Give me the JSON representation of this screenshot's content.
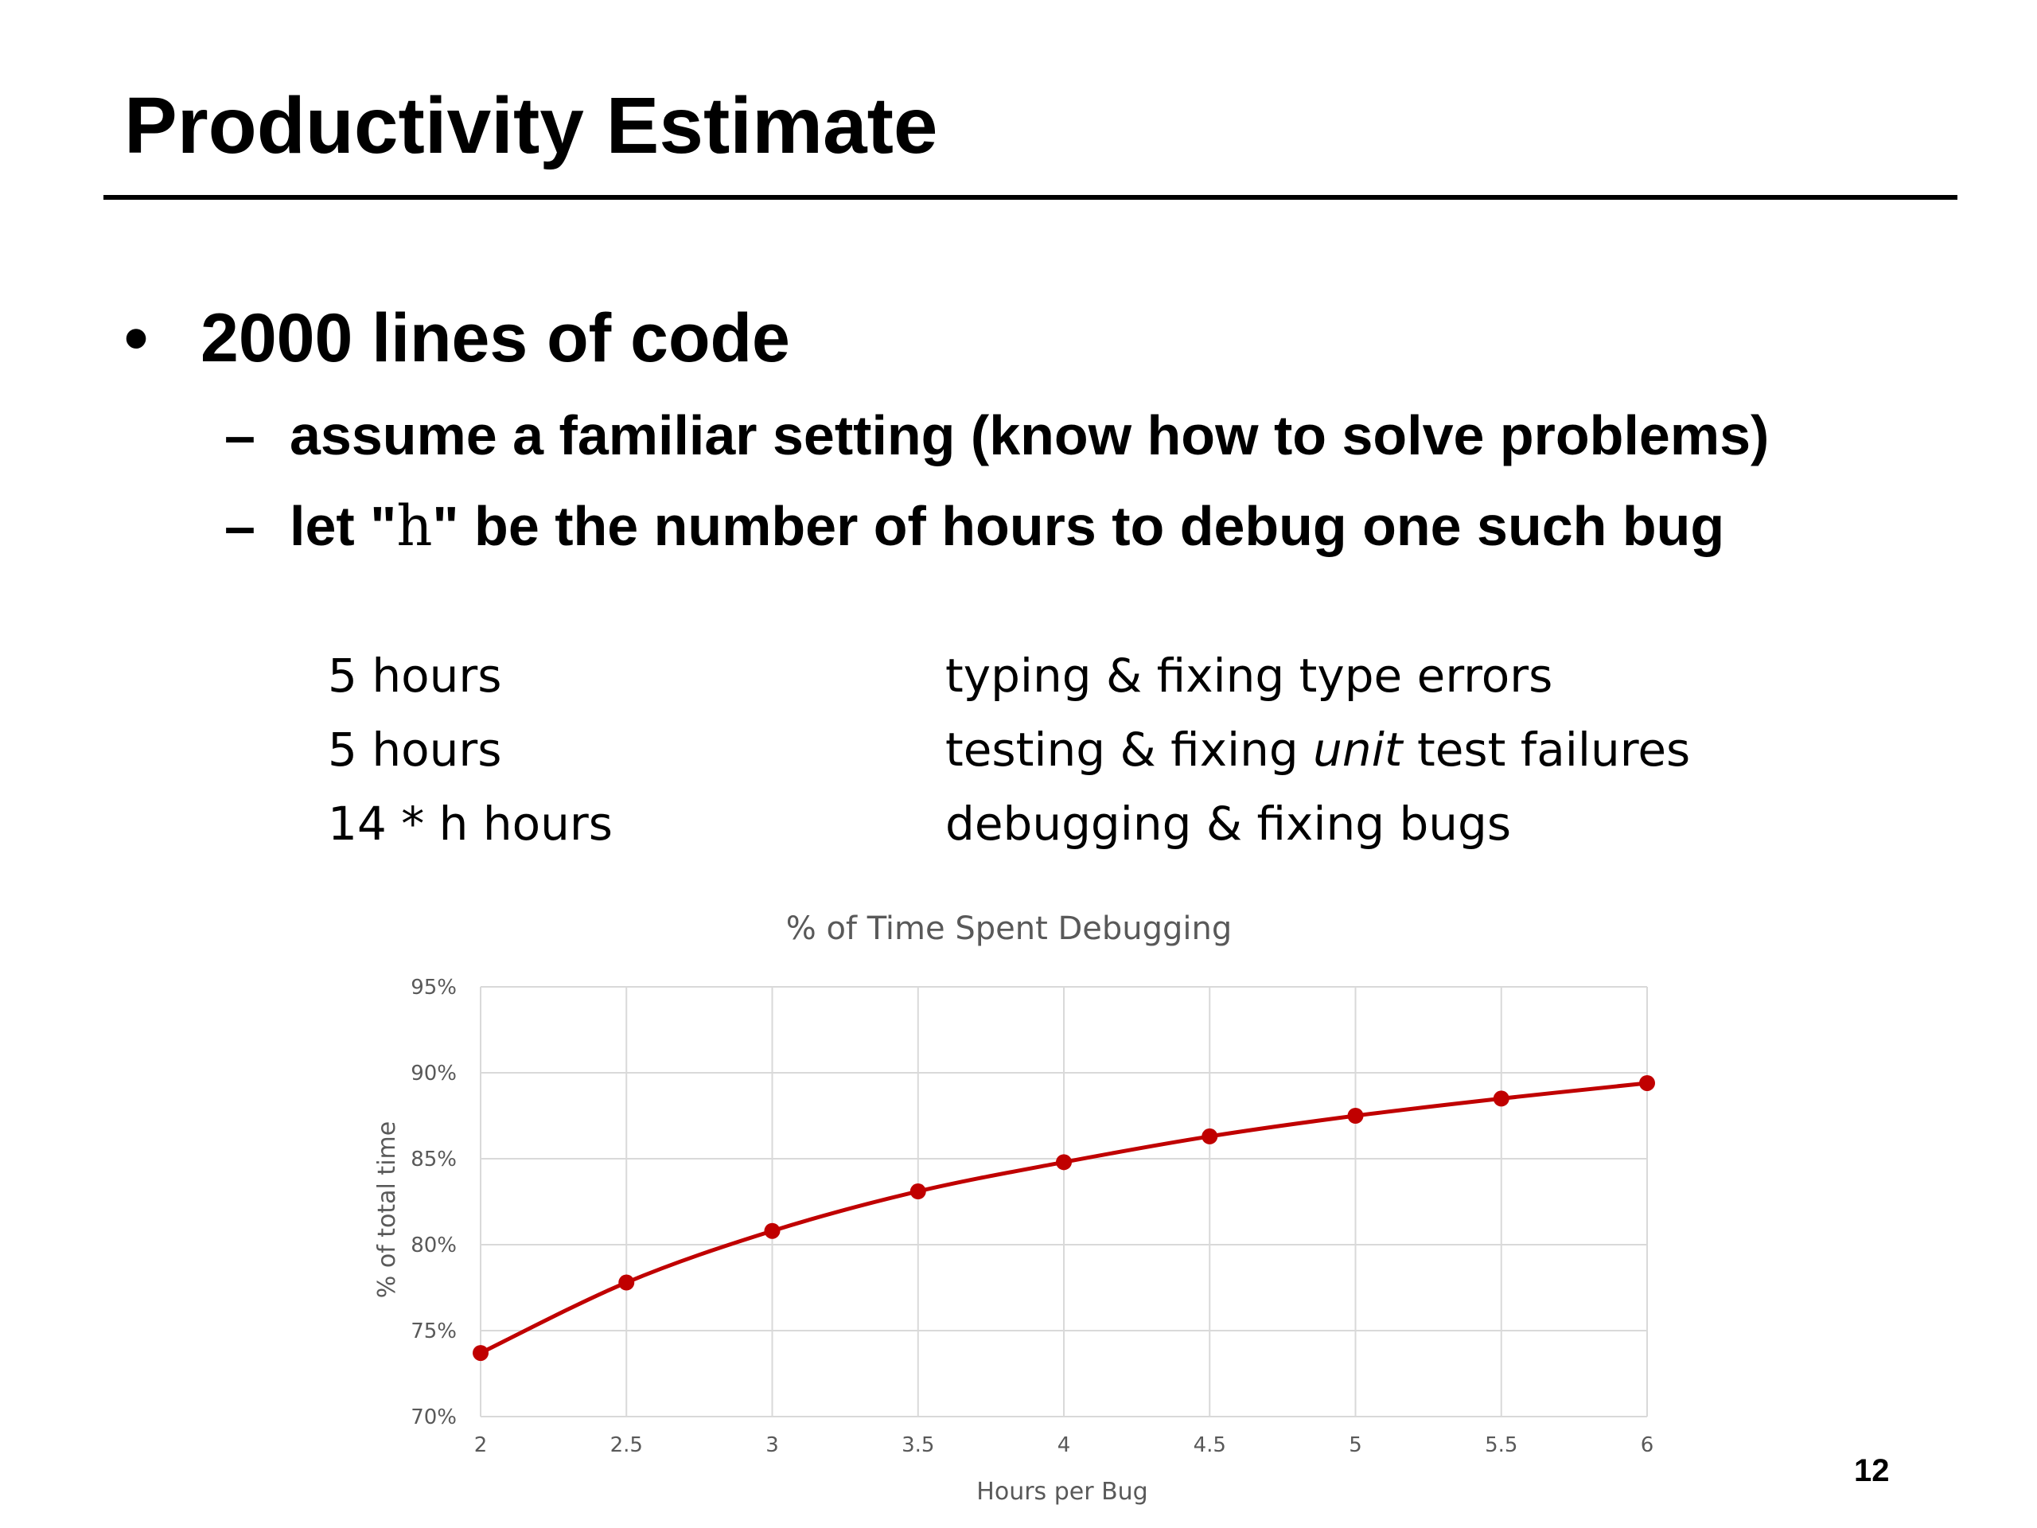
{
  "slide": {
    "title": "Productivity Estimate",
    "page_number": "12"
  },
  "bullets": {
    "main": "2000 lines of code",
    "sub1": "assume a familiar setting (know how to solve problems)",
    "sub2_pre": "let \"",
    "sub2_var": "h",
    "sub2_post": "\" be the number of hours to debug one such bug"
  },
  "estimates": [
    {
      "amount": "5 hours",
      "task": "typing & fixing type errors"
    },
    {
      "amount": "5 hours",
      "task_pre": "testing & fixing ",
      "task_em": "unit",
      "task_post": " test failures"
    },
    {
      "amount": "14 * h hours",
      "task": "debugging & fixing bugs"
    }
  ],
  "colors": {
    "series": "#c00000",
    "grid": "#d9d9d9",
    "axis_text": "#595959"
  },
  "chart_data": {
    "type": "line",
    "title": "% of Time Spent Debugging",
    "xlabel": "Hours per Bug",
    "ylabel": "% of total time",
    "x": [
      2,
      2.5,
      3,
      3.5,
      4,
      4.5,
      5,
      5.5,
      6
    ],
    "x_tick_labels": [
      "2",
      "2.5",
      "3",
      "3.5",
      "4",
      "4.5",
      "5",
      "5.5",
      "6"
    ],
    "y_tick_labels": [
      "70%",
      "75%",
      "80%",
      "85%",
      "90%",
      "95%"
    ],
    "y_ticks": [
      70,
      75,
      80,
      85,
      90,
      95
    ],
    "xlim": [
      2,
      6
    ],
    "ylim": [
      70,
      95
    ],
    "grid": true,
    "legend": "none",
    "series": [
      {
        "values": [
          73.7,
          77.8,
          80.8,
          83.1,
          84.8,
          86.3,
          87.5,
          88.5,
          89.4
        ]
      }
    ]
  }
}
